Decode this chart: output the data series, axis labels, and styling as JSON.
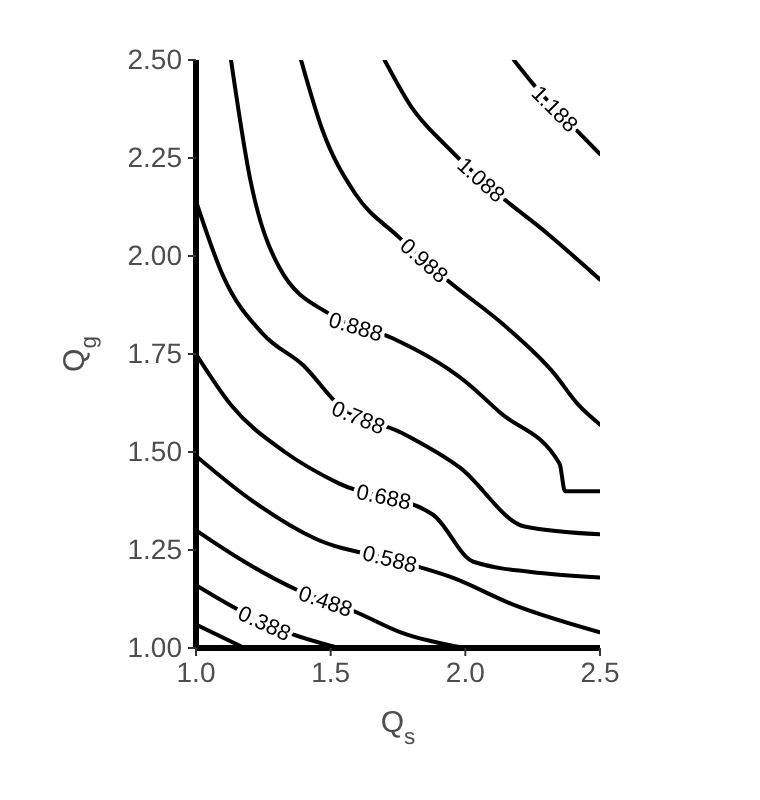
{
  "chart_data": {
    "type": "line",
    "xlabel": "Q$_{s}$",
    "ylabel": "Q$_{g}$",
    "xlim": [
      1.0,
      2.5
    ],
    "xticks": [
      {
        "value": 1,
        "label": "1.0"
      },
      {
        "value": 1.5,
        "label": "1.5"
      },
      {
        "value": 2,
        "label": "2.0"
      },
      {
        "value": 2.5,
        "label": "2.5"
      }
    ],
    "ylim": [
      1.0,
      2.5
    ],
    "yticks": [
      {
        "value": 1,
        "label": "1.00"
      },
      {
        "value": 1.25,
        "label": "1.25"
      },
      {
        "value": 1.5,
        "label": "1.50"
      },
      {
        "value": 1.75,
        "label": "1.75"
      },
      {
        "value": 2,
        "label": "2.00"
      },
      {
        "value": 2.25,
        "label": "2.25"
      },
      {
        "value": 2.5,
        "label": "2.50"
      }
    ],
    "grid": false,
    "marker": "none",
    "line_style": "solid",
    "series": [
      {
        "color": "#000000",
        "x": [
          1.0,
          1.18
        ],
        "values": [
          1.06,
          1.0
        ]
      },
      {
        "name": "0.388",
        "color": "#000000",
        "x": [
          1.0,
          1.15,
          1.3,
          1.53
        ],
        "values": [
          1.16,
          1.1,
          1.05,
          1.0
        ]
      },
      {
        "name": "0.488",
        "color": "#000000",
        "x": [
          1.0,
          1.18,
          1.37,
          1.6,
          1.76,
          2.0
        ],
        "values": [
          1.3,
          1.22,
          1.15,
          1.09,
          1.04,
          1.0
        ]
      },
      {
        "name": "0.588",
        "color": "#000000",
        "x": [
          1.0,
          1.2,
          1.44,
          1.76,
          1.95,
          2.18,
          2.5
        ],
        "values": [
          1.49,
          1.38,
          1.28,
          1.22,
          1.18,
          1.11,
          1.04
        ]
      },
      {
        "name": "0.688",
        "color": "#000000",
        "x": [
          1.0,
          1.13,
          1.33,
          1.53,
          1.88,
          2.03,
          2.3,
          2.5
        ],
        "values": [
          1.75,
          1.62,
          1.5,
          1.42,
          1.34,
          1.22,
          1.19,
          1.18
        ]
      },
      {
        "name": "0.788",
        "color": "#000000",
        "x": [
          1.0,
          1.1,
          1.25,
          1.4,
          1.53,
          1.76,
          1.98,
          2.22,
          2.5
        ],
        "values": [
          2.14,
          1.95,
          1.8,
          1.72,
          1.62,
          1.55,
          1.46,
          1.31,
          1.29
        ]
      },
      {
        "name": "0.888",
        "color": "#000000",
        "x": [
          1.13,
          1.2,
          1.31,
          1.5,
          1.73,
          2.0,
          2.13,
          2.35,
          2.37,
          2.5
        ],
        "values": [
          2.5,
          2.2,
          1.97,
          1.85,
          1.79,
          1.68,
          1.6,
          1.47,
          1.4,
          1.4
        ]
      },
      {
        "name": "0.988",
        "color": "#000000",
        "x": [
          1.39,
          1.47,
          1.59,
          1.75,
          1.93,
          2.15,
          2.33,
          2.42,
          2.5
        ],
        "values": [
          2.5,
          2.32,
          2.16,
          2.05,
          1.94,
          1.82,
          1.7,
          1.62,
          1.57
        ]
      },
      {
        "name": "1.088",
        "color": "#000000",
        "x": [
          1.7,
          1.8,
          1.93,
          2.1,
          2.3,
          2.5
        ],
        "values": [
          2.5,
          2.38,
          2.28,
          2.17,
          2.06,
          1.94
        ]
      },
      {
        "name": "1.188",
        "color": "#000000",
        "x": [
          2.18,
          2.3,
          2.4,
          2.5
        ],
        "values": [
          2.5,
          2.4,
          2.33,
          2.26
        ]
      }
    ]
  }
}
